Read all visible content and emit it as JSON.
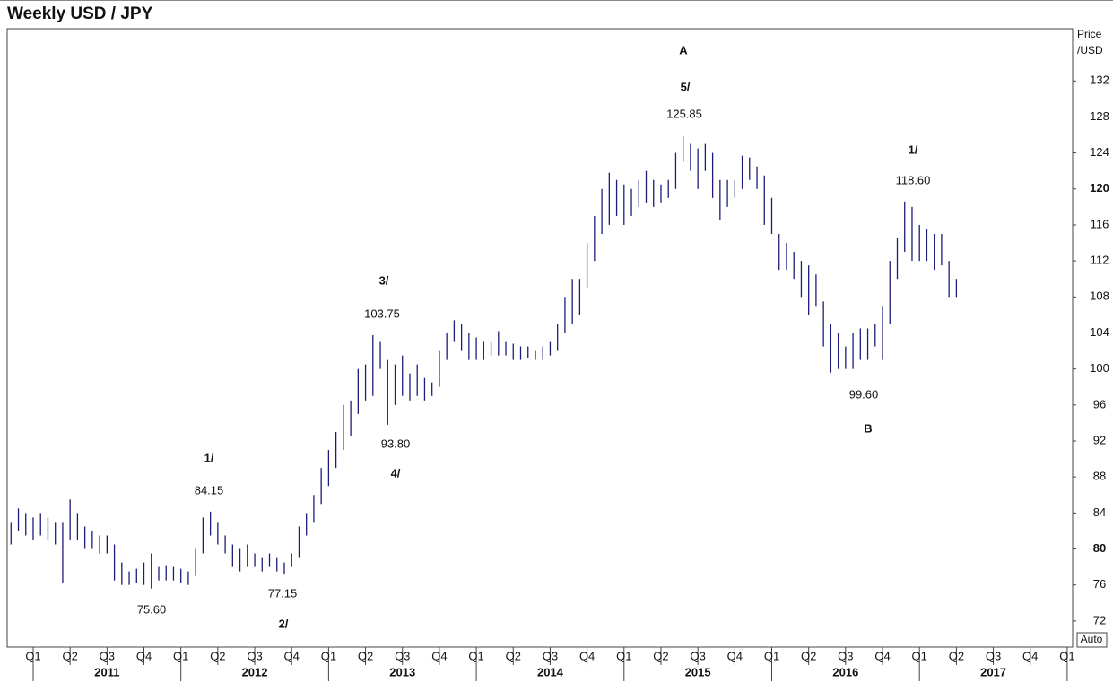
{
  "chart_data": {
    "type": "hilo",
    "title": "Weekly  USD / JPY",
    "y_label": [
      "Price",
      "/USD"
    ],
    "auto_label": "Auto",
    "color": "#1c1c78",
    "ylim": [
      69.1,
      137.8
    ],
    "yticks": [
      72,
      76,
      80,
      84,
      88,
      92,
      96,
      100,
      104,
      108,
      112,
      116,
      120,
      124,
      128,
      132
    ],
    "xlim": [
      2010.824,
      2018.037
    ],
    "xticks": [
      {
        "value": 2011,
        "label": "Q1"
      },
      {
        "value": 2011.25,
        "label": "Q2"
      },
      {
        "value": 2011.5,
        "label": "Q3"
      },
      {
        "value": 2011.75,
        "label": "Q4"
      },
      {
        "value": 2012,
        "label": "Q1"
      },
      {
        "value": 2012.25,
        "label": "Q2"
      },
      {
        "value": 2012.5,
        "label": "Q3"
      },
      {
        "value": 2012.75,
        "label": "Q4"
      },
      {
        "value": 2013,
        "label": "Q1"
      },
      {
        "value": 2013.25,
        "label": "Q2"
      },
      {
        "value": 2013.5,
        "label": "Q3"
      },
      {
        "value": 2013.75,
        "label": "Q4"
      },
      {
        "value": 2014,
        "label": "Q1"
      },
      {
        "value": 2014.25,
        "label": "Q2"
      },
      {
        "value": 2014.5,
        "label": "Q3"
      },
      {
        "value": 2014.75,
        "label": "Q4"
      },
      {
        "value": 2015,
        "label": "Q1"
      },
      {
        "value": 2015.25,
        "label": "Q2"
      },
      {
        "value": 2015.5,
        "label": "Q3"
      },
      {
        "value": 2015.75,
        "label": "Q4"
      },
      {
        "value": 2016,
        "label": "Q1"
      },
      {
        "value": 2016.25,
        "label": "Q2"
      },
      {
        "value": 2016.5,
        "label": "Q3"
      },
      {
        "value": 2016.75,
        "label": "Q4"
      },
      {
        "value": 2017,
        "label": "Q1"
      },
      {
        "value": 2017.25,
        "label": "Q2"
      },
      {
        "value": 2017.5,
        "label": "Q3"
      },
      {
        "value": 2017.75,
        "label": "Q4"
      },
      {
        "value": 2018,
        "label": "Q1"
      }
    ],
    "years": [
      {
        "value": 2011.5,
        "label": "2011"
      },
      {
        "value": 2012.5,
        "label": "2012"
      },
      {
        "value": 2013.5,
        "label": "2013"
      },
      {
        "value": 2014.5,
        "label": "2014"
      },
      {
        "value": 2015.5,
        "label": "2015"
      },
      {
        "value": 2016.5,
        "label": "2016"
      },
      {
        "value": 2017.5,
        "label": "2017"
      }
    ],
    "x": [
      2010.85,
      2010.9,
      2010.95,
      2011,
      2011.05,
      2011.1,
      2011.15,
      2011.2,
      2011.25,
      2011.3,
      2011.35,
      2011.4,
      2011.45,
      2011.5,
      2011.55,
      2011.6,
      2011.65,
      2011.7,
      2011.75,
      2011.8,
      2011.85,
      2011.9,
      2011.95,
      2012,
      2012.05,
      2012.1,
      2012.15,
      2012.2,
      2012.25,
      2012.3,
      2012.35,
      2012.4,
      2012.45,
      2012.5,
      2012.55,
      2012.6,
      2012.65,
      2012.7,
      2012.75,
      2012.8,
      2012.85,
      2012.9,
      2012.95,
      2013,
      2013.05,
      2013.1,
      2013.15,
      2013.2,
      2013.25,
      2013.3,
      2013.35,
      2013.4,
      2013.45,
      2013.5,
      2013.55,
      2013.6,
      2013.65,
      2013.7,
      2013.75,
      2013.8,
      2013.85,
      2013.9,
      2013.95,
      2014,
      2014.05,
      2014.1,
      2014.15,
      2014.2,
      2014.25,
      2014.3,
      2014.35,
      2014.4,
      2014.45,
      2014.5,
      2014.55,
      2014.6,
      2014.65,
      2014.7,
      2014.75,
      2014.8,
      2014.85,
      2014.9,
      2014.95,
      2015,
      2015.05,
      2015.1,
      2015.15,
      2015.2,
      2015.25,
      2015.3,
      2015.35,
      2015.4,
      2015.45,
      2015.5,
      2015.55,
      2015.6,
      2015.65,
      2015.7,
      2015.75,
      2015.8,
      2015.85,
      2015.9,
      2015.95,
      2016,
      2016.05,
      2016.1,
      2016.15,
      2016.2,
      2016.25,
      2016.3,
      2016.35,
      2016.4,
      2016.45,
      2016.5,
      2016.55,
      2016.6,
      2016.65,
      2016.7,
      2016.75,
      2016.8,
      2016.85,
      2016.9,
      2016.95,
      2017,
      2017.05,
      2017.1,
      2017.15,
      2017.2,
      2017.25
    ],
    "high": [
      83,
      84.5,
      84,
      83.5,
      84,
      83.5,
      83,
      83,
      85.5,
      84,
      82.5,
      82,
      81.5,
      81.5,
      80.5,
      78.5,
      77.5,
      77.8,
      78.5,
      79.5,
      78,
      78.2,
      78,
      77.8,
      77.5,
      80,
      83.5,
      84.15,
      83,
      81.5,
      80.5,
      80,
      80.5,
      79.5,
      79,
      79.5,
      79,
      78.5,
      79.5,
      82.5,
      84,
      86,
      89,
      91,
      93,
      96,
      96.5,
      100,
      100.5,
      103.75,
      103,
      101,
      100.5,
      101.5,
      99.5,
      100.5,
      99,
      98.5,
      102,
      104,
      105.4,
      105,
      104,
      103.5,
      103,
      103,
      104.2,
      103,
      102.8,
      102.5,
      102.5,
      102,
      102.5,
      103,
      105,
      108,
      110,
      110,
      114,
      117,
      120,
      121.8,
      121,
      120.5,
      120,
      121,
      122,
      121,
      120.5,
      121,
      124,
      125.85,
      125,
      124.5,
      125,
      124,
      121,
      121,
      121,
      123.7,
      123.5,
      122.5,
      121.5,
      119,
      115,
      114,
      113,
      112,
      111.5,
      110.5,
      107.5,
      105,
      104,
      102.5,
      104,
      104.5,
      104.5,
      105,
      107,
      112,
      114.5,
      118.6,
      118,
      116,
      115.5,
      115,
      115,
      112,
      110
    ],
    "low": [
      80.5,
      82,
      81.5,
      81,
      81.5,
      81,
      80.5,
      76.2,
      81,
      81,
      80,
      80,
      79.5,
      79.5,
      76.5,
      76,
      76,
      76.2,
      76,
      75.6,
      76.5,
      76.5,
      76.5,
      76.2,
      76,
      77,
      79.5,
      81.5,
      80.5,
      79.5,
      78,
      77.5,
      78,
      78,
      77.5,
      78,
      77.5,
      77.15,
      78,
      79,
      81.5,
      83,
      85,
      87,
      89,
      91,
      92.5,
      95,
      96.5,
      97,
      100,
      93.8,
      96,
      97,
      96.5,
      97,
      96.5,
      97,
      98,
      101,
      103,
      102,
      101,
      101,
      101,
      101.5,
      101.5,
      101.5,
      101,
      101,
      101.2,
      101,
      101,
      101.5,
      102,
      104,
      105,
      106,
      109,
      112,
      115,
      116,
      117,
      116,
      117,
      118,
      118.5,
      118,
      118.5,
      119,
      120,
      123,
      122,
      120,
      122,
      119,
      116.5,
      118,
      119,
      120,
      121,
      120,
      116,
      115,
      111,
      111,
      110,
      108,
      106,
      107,
      102.5,
      99.6,
      100,
      100,
      100,
      101,
      101,
      102.5,
      101,
      105,
      110,
      113,
      112,
      112,
      112,
      111,
      111.5,
      108,
      108
    ],
    "annotations": [
      "A",
      "5/",
      "125.85",
      "1/",
      "118.60",
      "3/",
      "103.75",
      "93.80",
      "4/",
      "1/",
      "84.15",
      "77.15",
      "2/",
      "75.60",
      "99.60",
      "B"
    ]
  }
}
